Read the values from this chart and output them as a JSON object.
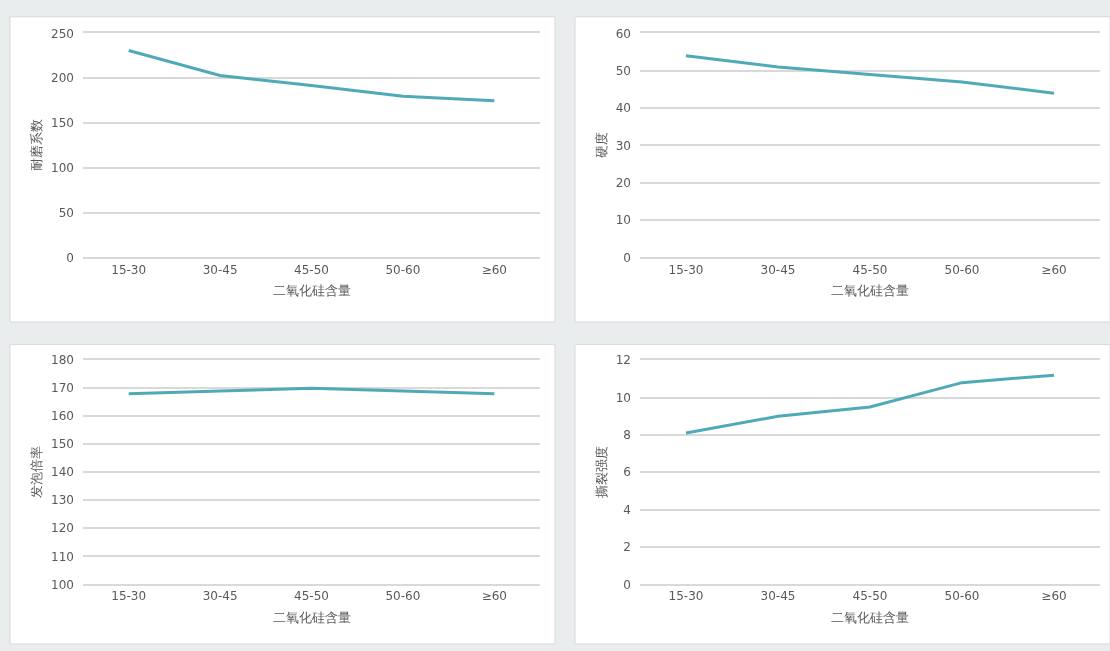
{
  "chart_data": [
    {
      "type": "line",
      "categories": [
        "15-30",
        "30-45",
        "45-50",
        "50-60",
        "≥60"
      ],
      "values": [
        231,
        203,
        192,
        180,
        175
      ],
      "color": "#4fa9b8",
      "xlabel": "二氧化硅含量",
      "ylabel": "耐磨系数",
      "ylim": [
        0,
        250
      ],
      "yticks": [
        0,
        50,
        100,
        150,
        200,
        250
      ],
      "grid": "y",
      "marker": "none",
      "line_style": "solid"
    },
    {
      "type": "line",
      "categories": [
        "15-30",
        "30-45",
        "45-50",
        "50-60",
        "≥60"
      ],
      "values": [
        54,
        51,
        49,
        47,
        44
      ],
      "color": "#4fa9b8",
      "xlabel": "二氧化硅含量",
      "ylabel": "硬度",
      "ylim": [
        0,
        60
      ],
      "yticks": [
        0,
        10,
        20,
        30,
        40,
        50,
        60
      ],
      "grid": "y",
      "marker": "none",
      "line_style": "solid"
    },
    {
      "type": "line",
      "categories": [
        "15-30",
        "30-45",
        "45-50",
        "50-60",
        "≥60"
      ],
      "values": [
        168,
        169,
        170,
        169,
        168
      ],
      "color": "#4fa9b8",
      "xlabel": "二氧化硅含量",
      "ylabel": "发泡倍率",
      "ylim": [
        100,
        180
      ],
      "yticks": [
        100,
        110,
        120,
        130,
        140,
        150,
        160,
        170,
        180
      ],
      "grid": "y",
      "marker": "none",
      "line_style": "solid"
    },
    {
      "type": "line",
      "categories": [
        "15-30",
        "30-45",
        "45-50",
        "50-60",
        "≥60"
      ],
      "values": [
        8.1,
        9.0,
        9.5,
        10.8,
        11.2
      ],
      "color": "#4fa9b8",
      "xlabel": "二氧化硅含量",
      "ylabel": "撕裂强度",
      "ylim": [
        0,
        12
      ],
      "yticks": [
        0,
        2,
        4,
        6,
        8,
        10,
        12
      ],
      "grid": "y",
      "marker": "none",
      "line_style": "solid"
    }
  ]
}
